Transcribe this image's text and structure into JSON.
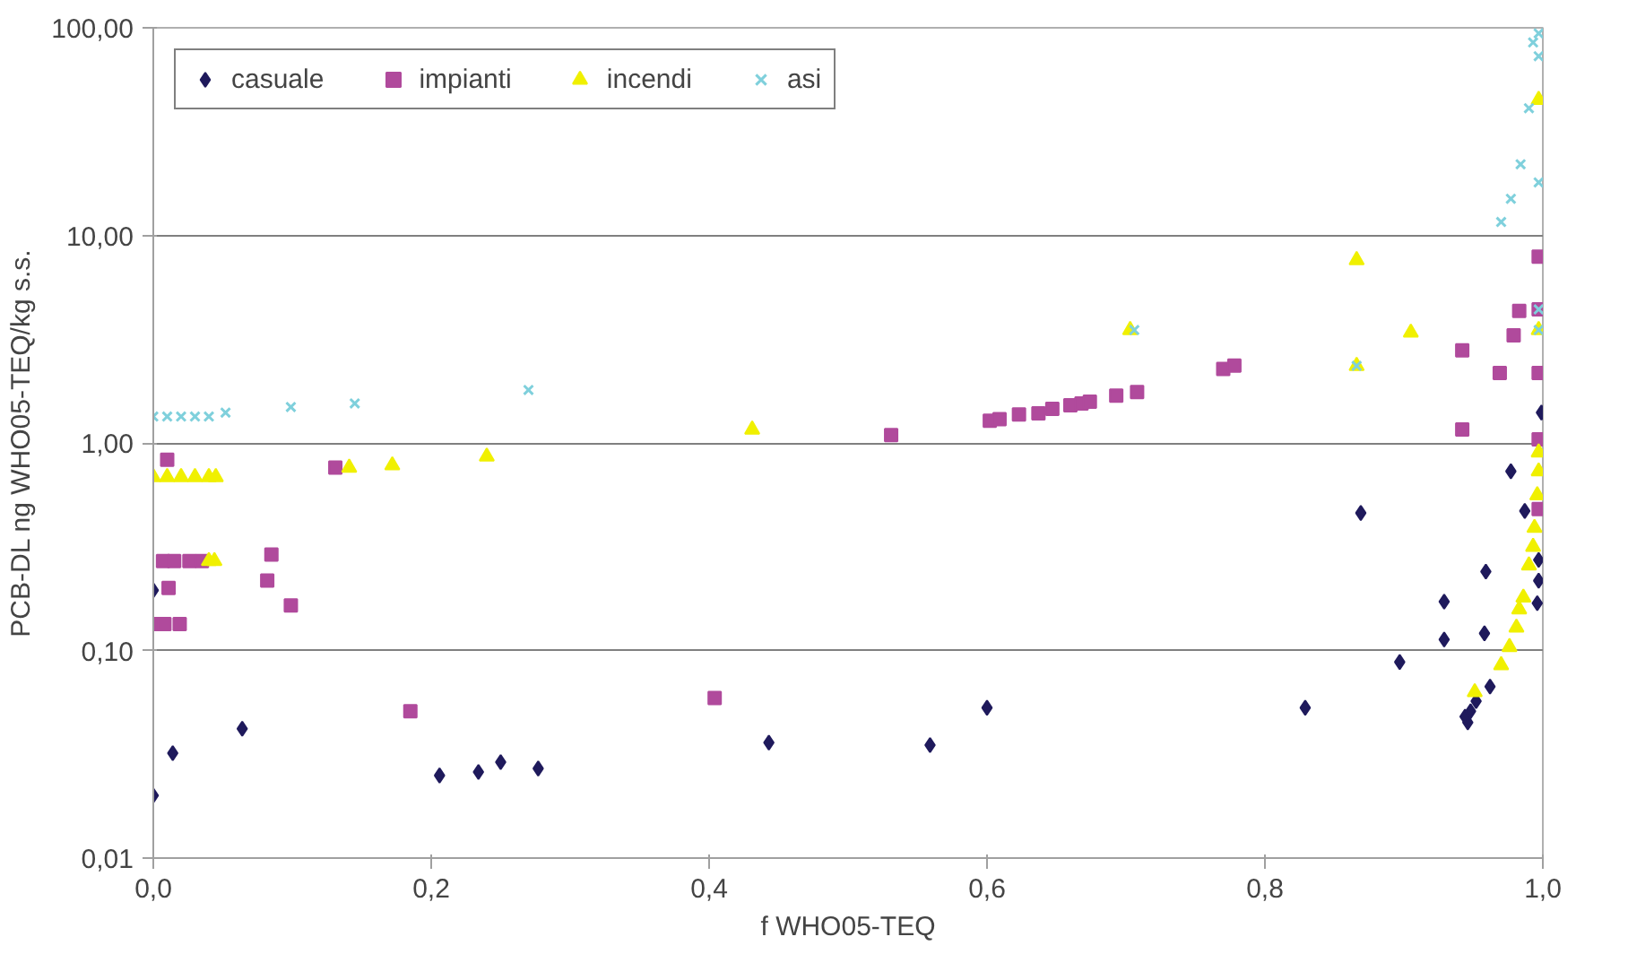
{
  "chart_data": {
    "type": "scatter",
    "xlabel": "f WHO05-TEQ",
    "ylabel": "PCB-DL ng WHO05-TEQ/kg s.s.",
    "xlim": [
      0,
      1
    ],
    "xticks": [
      {
        "value": 0,
        "label": "0,0"
      },
      {
        "value": 0.2,
        "label": "0,2"
      },
      {
        "value": 0.4,
        "label": "0,4"
      },
      {
        "value": 0.6,
        "label": "0,6"
      },
      {
        "value": 0.8,
        "label": "0,8"
      },
      {
        "value": 1,
        "label": "1,0"
      }
    ],
    "ylim": [
      0.01,
      100
    ],
    "yticks": [
      {
        "value": 0.01,
        "label": "0,01"
      },
      {
        "value": 0.1,
        "label": "0,10"
      },
      {
        "value": 1,
        "label": "1,00"
      },
      {
        "value": 10,
        "label": "10,00"
      },
      {
        "value": 100,
        "label": "100,00"
      }
    ],
    "log": "y",
    "grid": "y",
    "legend": "top left",
    "series": [
      {
        "name": "casuale",
        "color": "#1f1a5c",
        "marker": "diamond",
        "x": [
          0.0,
          0.014,
          0.064,
          0.206,
          0.234,
          0.25,
          0.277,
          0.443,
          0.559,
          0.6,
          0.829,
          0.0,
          0.869,
          0.977,
          0.987,
          0.959,
          0.929,
          0.929,
          0.958,
          0.897,
          0.962,
          0.946,
          0.944,
          0.948,
          0.952,
          0.997,
          0.996,
          0.997,
          0.999
        ],
        "values": [
          0.02,
          0.032,
          0.042,
          0.025,
          0.026,
          0.029,
          0.027,
          0.036,
          0.035,
          0.053,
          0.053,
          0.195,
          0.46,
          0.73,
          0.47,
          0.24,
          0.172,
          0.113,
          0.121,
          0.088,
          0.067,
          0.045,
          0.048,
          0.051,
          0.057,
          0.217,
          0.169,
          0.273,
          1.4
        ]
      },
      {
        "name": "impianti",
        "color": "#b04a9c",
        "marker": "square",
        "x": [
          0.01,
          0.007,
          0.015,
          0.026,
          0.035,
          0.085,
          0.082,
          0.099,
          0.011,
          0.0,
          0.008,
          0.019,
          0.131,
          0.185,
          0.404,
          0.531,
          0.602,
          0.609,
          0.623,
          0.637,
          0.647,
          0.66,
          0.668,
          0.674,
          0.693,
          0.708,
          0.77,
          0.778,
          0.997,
          0.983,
          0.997,
          0.979,
          0.942,
          0.969,
          0.942,
          0.997,
          0.997,
          0.997
        ],
        "values": [
          0.83,
          0.27,
          0.27,
          0.27,
          0.27,
          0.29,
          0.217,
          0.165,
          0.2,
          0.134,
          0.134,
          0.134,
          0.76,
          0.051,
          0.059,
          1.09,
          1.28,
          1.3,
          1.37,
          1.39,
          1.46,
          1.52,
          1.55,
          1.58,
          1.69,
          1.76,
          2.27,
          2.36,
          7.9,
          4.33,
          4.4,
          3.3,
          2.79,
          2.17,
          1.16,
          2.17,
          1.04,
          0.48
        ]
      },
      {
        "name": "incendi",
        "color": "#f0f000",
        "marker": "triangle",
        "x": [
          0.0,
          0.01,
          0.02,
          0.03,
          0.04,
          0.045,
          0.04,
          0.044,
          0.141,
          0.172,
          0.24,
          0.431,
          0.703,
          0.866,
          0.866,
          0.905,
          0.997,
          0.997,
          0.951,
          0.97,
          0.976,
          0.981,
          0.983,
          0.986,
          0.99,
          0.993,
          0.994,
          0.996,
          0.997,
          0.997
        ],
        "values": [
          0.685,
          0.685,
          0.685,
          0.685,
          0.685,
          0.685,
          0.27,
          0.27,
          0.76,
          0.78,
          0.86,
          1.16,
          3.5,
          7.6,
          2.35,
          3.4,
          45,
          3.5,
          0.063,
          0.085,
          0.104,
          0.129,
          0.158,
          0.18,
          0.257,
          0.316,
          0.39,
          0.56,
          0.73,
          0.9
        ]
      },
      {
        "name": "asi",
        "color": "#7fd0dc",
        "marker": "cross",
        "x": [
          0.0,
          0.01,
          0.02,
          0.03,
          0.04,
          0.052,
          0.099,
          0.145,
          0.27,
          0.706,
          0.866,
          0.993,
          0.997,
          0.997,
          0.99,
          0.984,
          0.977,
          0.97,
          0.997,
          0.997,
          0.997
        ],
        "values": [
          1.34,
          1.34,
          1.34,
          1.34,
          1.34,
          1.4,
          1.49,
          1.55,
          1.8,
          3.5,
          2.35,
          85,
          94,
          73,
          41,
          22,
          15,
          11.6,
          18,
          4.4,
          3.5
        ]
      }
    ]
  }
}
